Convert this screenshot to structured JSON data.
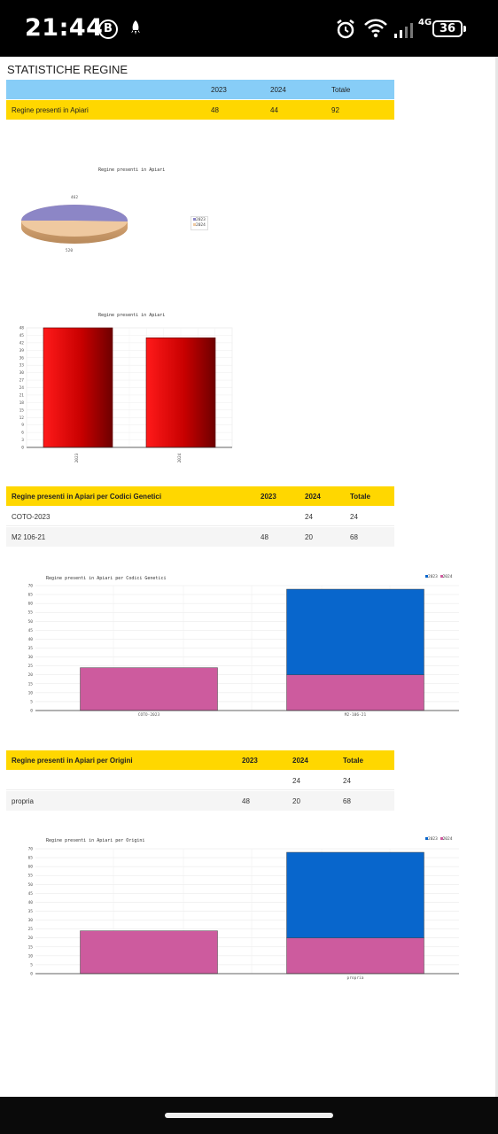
{
  "status_bar": {
    "time": "21:44",
    "badge_letter": "B",
    "network": "4G",
    "battery": "36"
  },
  "page": {
    "title": "STATISTICHE REGINE"
  },
  "table_main": {
    "headers": [
      "",
      "2023",
      "2024",
      "Totale"
    ],
    "rows": [
      [
        "Regine presenti in Apiari",
        "48",
        "44",
        "92"
      ]
    ]
  },
  "chart_pie": {
    "title": "Regine presenti in Apiari",
    "label_top": "462",
    "label_bottom": "520",
    "legend": [
      "2023",
      "2024"
    ]
  },
  "chart_bar": {
    "title": "Regine presenti in Apiari",
    "yticks": [
      "48",
      "45",
      "42",
      "39",
      "36",
      "33",
      "30",
      "27",
      "24",
      "21",
      "18",
      "15",
      "12",
      "9",
      "6",
      "3",
      "0"
    ],
    "categories": [
      "2023",
      "2024"
    ]
  },
  "table_codici": {
    "headers": [
      "Regine presenti in Apiari per Codici Genetici",
      "2023",
      "2024",
      "Totale"
    ],
    "rows": [
      [
        "COTO-2023",
        "",
        "24",
        "24"
      ],
      [
        "M2 106-21",
        "48",
        "20",
        "68"
      ]
    ]
  },
  "chart_codici": {
    "title": "Regine presenti in Apiari per Codici Genetici",
    "yticks": [
      "70",
      "65",
      "60",
      "55",
      "50",
      "45",
      "40",
      "35",
      "30",
      "25",
      "20",
      "15",
      "10",
      "5",
      "0"
    ],
    "categories": [
      "COTO-2023",
      "M2-106-21"
    ],
    "legend": [
      "2023",
      "2024"
    ]
  },
  "table_origini": {
    "headers": [
      "Regine presenti in Apiari per Origini",
      "2023",
      "2024",
      "Totale"
    ],
    "rows": [
      [
        "",
        "",
        "24",
        "24"
      ],
      [
        "propria",
        "48",
        "20",
        "68"
      ]
    ]
  },
  "chart_origini": {
    "title": "Regine presenti in Apiari per Origini",
    "yticks": [
      "70",
      "65",
      "60",
      "55",
      "50",
      "45",
      "40",
      "35",
      "30",
      "25",
      "20",
      "15",
      "10",
      "5",
      "0"
    ],
    "categories": [
      "",
      "propria"
    ],
    "legend": [
      "2023",
      "2024"
    ]
  },
  "colors": {
    "header_blue": "#87cdf7",
    "header_gold": "#ffd700",
    "bar_red": "#d40000",
    "pie_purple": "#8c86c6",
    "pie_peach": "#efc9a0",
    "stack_blue": "#0866cc",
    "stack_pink": "#cd5b9e"
  },
  "chart_data": [
    {
      "type": "pie",
      "title": "Regine presenti in Apiari",
      "categories": [
        "2023",
        "2024"
      ],
      "values": [
        462,
        520
      ]
    },
    {
      "type": "bar",
      "title": "Regine presenti in Apiari",
      "categories": [
        "2023",
        "2024"
      ],
      "values": [
        48,
        44
      ],
      "ylim": [
        0,
        48
      ]
    },
    {
      "type": "bar",
      "title": "Regine presenti in Apiari per Codici Genetici",
      "categories": [
        "COTO-2023",
        "M2-106-21"
      ],
      "series": [
        {
          "name": "2023",
          "values": [
            0,
            48
          ]
        },
        {
          "name": "2024",
          "values": [
            24,
            20
          ]
        }
      ],
      "ylim": [
        0,
        70
      ]
    },
    {
      "type": "bar",
      "title": "Regine presenti in Apiari per Origini",
      "categories": [
        "",
        "propria"
      ],
      "series": [
        {
          "name": "2023",
          "values": [
            0,
            48
          ]
        },
        {
          "name": "2024",
          "values": [
            24,
            20
          ]
        }
      ],
      "ylim": [
        0,
        70
      ]
    }
  ]
}
